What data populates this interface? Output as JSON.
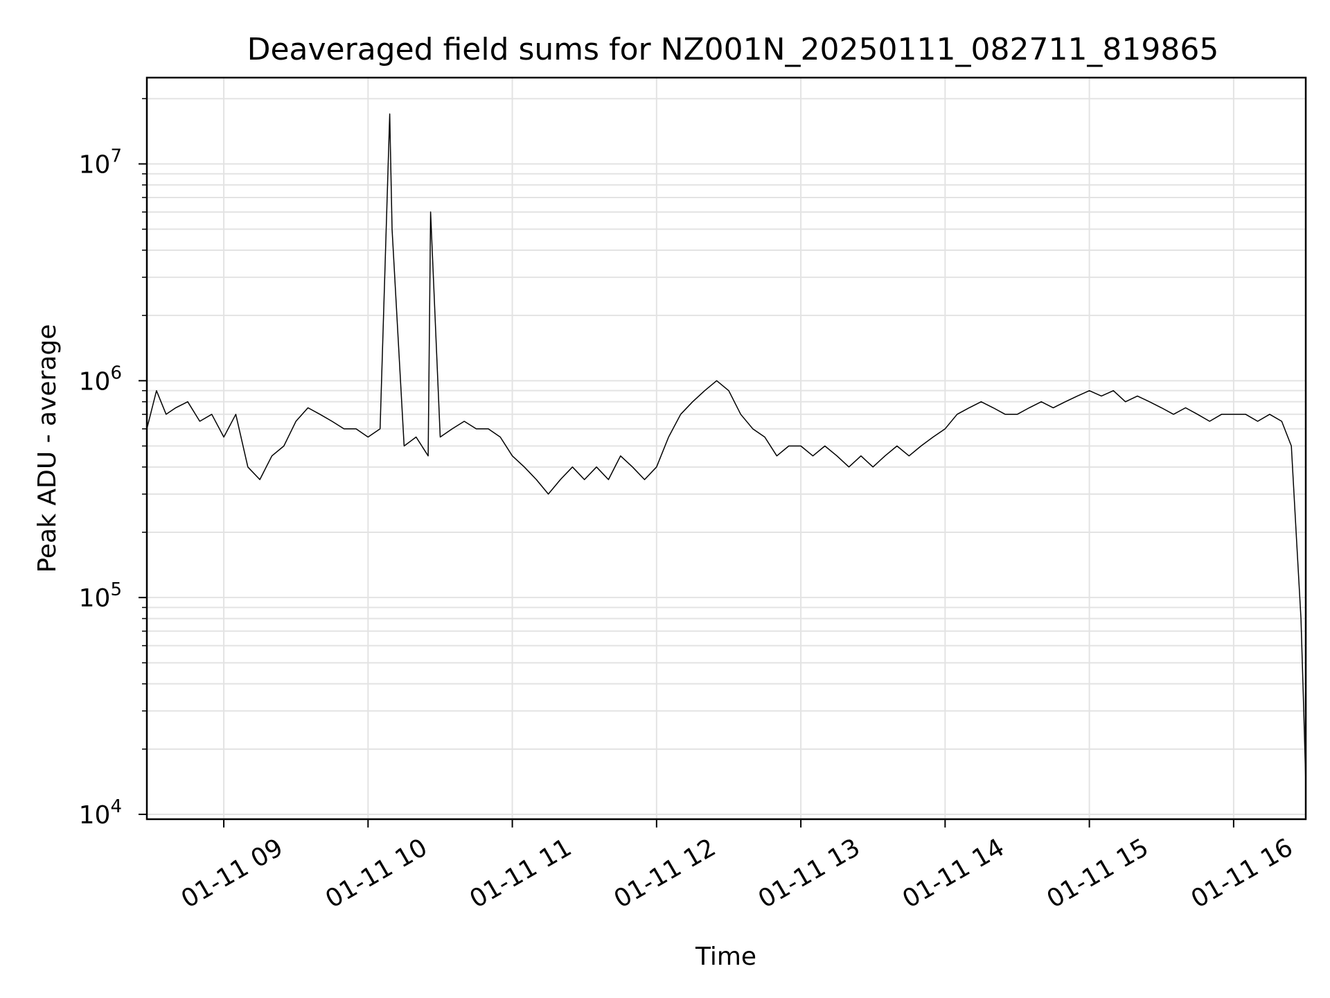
{
  "chart_data": {
    "type": "line",
    "title": "Deaveraged field sums for NZ001N_20250111_082711_819865",
    "xlabel": "Time",
    "ylabel": "Peak ADU - average",
    "yscale": "log",
    "xlim": [
      "2025-01-11 08:28",
      "2025-01-11 16:30"
    ],
    "ylim": [
      9500,
      25000000
    ],
    "grid": true,
    "line_color": "#000000",
    "x_ticks": [
      {
        "value": "2025-01-11 09:00",
        "label": "01-11 09"
      },
      {
        "value": "2025-01-11 10:00",
        "label": "01-11 10"
      },
      {
        "value": "2025-01-11 11:00",
        "label": "01-11 11"
      },
      {
        "value": "2025-01-11 12:00",
        "label": "01-11 12"
      },
      {
        "value": "2025-01-11 13:00",
        "label": "01-11 13"
      },
      {
        "value": "2025-01-11 14:00",
        "label": "01-11 14"
      },
      {
        "value": "2025-01-11 15:00",
        "label": "01-11 15"
      },
      {
        "value": "2025-01-11 16:00",
        "label": "01-11 16"
      }
    ],
    "y_ticks": [
      {
        "value": 10000,
        "base": "10",
        "exp": "4"
      },
      {
        "value": 100000,
        "base": "10",
        "exp": "5"
      },
      {
        "value": 1000000,
        "base": "10",
        "exp": "6"
      },
      {
        "value": 10000000,
        "base": "10",
        "exp": "7"
      }
    ],
    "series": [
      {
        "points": [
          [
            "2025-01-11 08:28",
            600000
          ],
          [
            "2025-01-11 08:32",
            900000
          ],
          [
            "2025-01-11 08:36",
            700000
          ],
          [
            "2025-01-11 08:40",
            750000
          ],
          [
            "2025-01-11 08:45",
            800000
          ],
          [
            "2025-01-11 08:50",
            650000
          ],
          [
            "2025-01-11 08:55",
            700000
          ],
          [
            "2025-01-11 09:00",
            550000
          ],
          [
            "2025-01-11 09:05",
            700000
          ],
          [
            "2025-01-11 09:10",
            400000
          ],
          [
            "2025-01-11 09:15",
            350000
          ],
          [
            "2025-01-11 09:20",
            450000
          ],
          [
            "2025-01-11 09:25",
            500000
          ],
          [
            "2025-01-11 09:30",
            650000
          ],
          [
            "2025-01-11 09:35",
            750000
          ],
          [
            "2025-01-11 09:40",
            700000
          ],
          [
            "2025-01-11 09:45",
            650000
          ],
          [
            "2025-01-11 09:50",
            600000
          ],
          [
            "2025-01-11 09:55",
            600000
          ],
          [
            "2025-01-11 10:00",
            550000
          ],
          [
            "2025-01-11 10:05",
            600000
          ],
          [
            "2025-01-11 10:09",
            17000000
          ],
          [
            "2025-01-11 10:10",
            5000000
          ],
          [
            "2025-01-11 10:15",
            500000
          ],
          [
            "2025-01-11 10:20",
            550000
          ],
          [
            "2025-01-11 10:25",
            450000
          ],
          [
            "2025-01-11 10:26",
            6000000
          ],
          [
            "2025-01-11 10:30",
            550000
          ],
          [
            "2025-01-11 10:35",
            600000
          ],
          [
            "2025-01-11 10:40",
            650000
          ],
          [
            "2025-01-11 10:45",
            600000
          ],
          [
            "2025-01-11 10:50",
            600000
          ],
          [
            "2025-01-11 10:55",
            550000
          ],
          [
            "2025-01-11 11:00",
            450000
          ],
          [
            "2025-01-11 11:05",
            400000
          ],
          [
            "2025-01-11 11:10",
            350000
          ],
          [
            "2025-01-11 11:15",
            300000
          ],
          [
            "2025-01-11 11:20",
            350000
          ],
          [
            "2025-01-11 11:25",
            400000
          ],
          [
            "2025-01-11 11:30",
            350000
          ],
          [
            "2025-01-11 11:35",
            400000
          ],
          [
            "2025-01-11 11:40",
            350000
          ],
          [
            "2025-01-11 11:45",
            450000
          ],
          [
            "2025-01-11 11:50",
            400000
          ],
          [
            "2025-01-11 11:55",
            350000
          ],
          [
            "2025-01-11 12:00",
            400000
          ],
          [
            "2025-01-11 12:05",
            550000
          ],
          [
            "2025-01-11 12:10",
            700000
          ],
          [
            "2025-01-11 12:15",
            800000
          ],
          [
            "2025-01-11 12:20",
            900000
          ],
          [
            "2025-01-11 12:25",
            1000000
          ],
          [
            "2025-01-11 12:30",
            900000
          ],
          [
            "2025-01-11 12:35",
            700000
          ],
          [
            "2025-01-11 12:40",
            600000
          ],
          [
            "2025-01-11 12:45",
            550000
          ],
          [
            "2025-01-11 12:50",
            450000
          ],
          [
            "2025-01-11 12:55",
            500000
          ],
          [
            "2025-01-11 13:00",
            500000
          ],
          [
            "2025-01-11 13:05",
            450000
          ],
          [
            "2025-01-11 13:10",
            500000
          ],
          [
            "2025-01-11 13:15",
            450000
          ],
          [
            "2025-01-11 13:20",
            400000
          ],
          [
            "2025-01-11 13:25",
            450000
          ],
          [
            "2025-01-11 13:30",
            400000
          ],
          [
            "2025-01-11 13:35",
            450000
          ],
          [
            "2025-01-11 13:40",
            500000
          ],
          [
            "2025-01-11 13:45",
            450000
          ],
          [
            "2025-01-11 13:50",
            500000
          ],
          [
            "2025-01-11 13:55",
            550000
          ],
          [
            "2025-01-11 14:00",
            600000
          ],
          [
            "2025-01-11 14:05",
            700000
          ],
          [
            "2025-01-11 14:10",
            750000
          ],
          [
            "2025-01-11 14:15",
            800000
          ],
          [
            "2025-01-11 14:20",
            750000
          ],
          [
            "2025-01-11 14:25",
            700000
          ],
          [
            "2025-01-11 14:30",
            700000
          ],
          [
            "2025-01-11 14:35",
            750000
          ],
          [
            "2025-01-11 14:40",
            800000
          ],
          [
            "2025-01-11 14:45",
            750000
          ],
          [
            "2025-01-11 14:50",
            800000
          ],
          [
            "2025-01-11 14:55",
            850000
          ],
          [
            "2025-01-11 15:00",
            900000
          ],
          [
            "2025-01-11 15:05",
            850000
          ],
          [
            "2025-01-11 15:10",
            900000
          ],
          [
            "2025-01-11 15:15",
            800000
          ],
          [
            "2025-01-11 15:20",
            850000
          ],
          [
            "2025-01-11 15:25",
            800000
          ],
          [
            "2025-01-11 15:30",
            750000
          ],
          [
            "2025-01-11 15:35",
            700000
          ],
          [
            "2025-01-11 15:40",
            750000
          ],
          [
            "2025-01-11 15:45",
            700000
          ],
          [
            "2025-01-11 15:50",
            650000
          ],
          [
            "2025-01-11 15:55",
            700000
          ],
          [
            "2025-01-11 16:00",
            700000
          ],
          [
            "2025-01-11 16:05",
            700000
          ],
          [
            "2025-01-11 16:10",
            650000
          ],
          [
            "2025-01-11 16:15",
            700000
          ],
          [
            "2025-01-11 16:20",
            650000
          ],
          [
            "2025-01-11 16:24",
            500000
          ],
          [
            "2025-01-11 16:26",
            200000
          ],
          [
            "2025-01-11 16:28",
            80000
          ],
          [
            "2025-01-11 16:29",
            35000
          ],
          [
            "2025-01-11 16:30",
            14000
          ]
        ]
      }
    ]
  }
}
